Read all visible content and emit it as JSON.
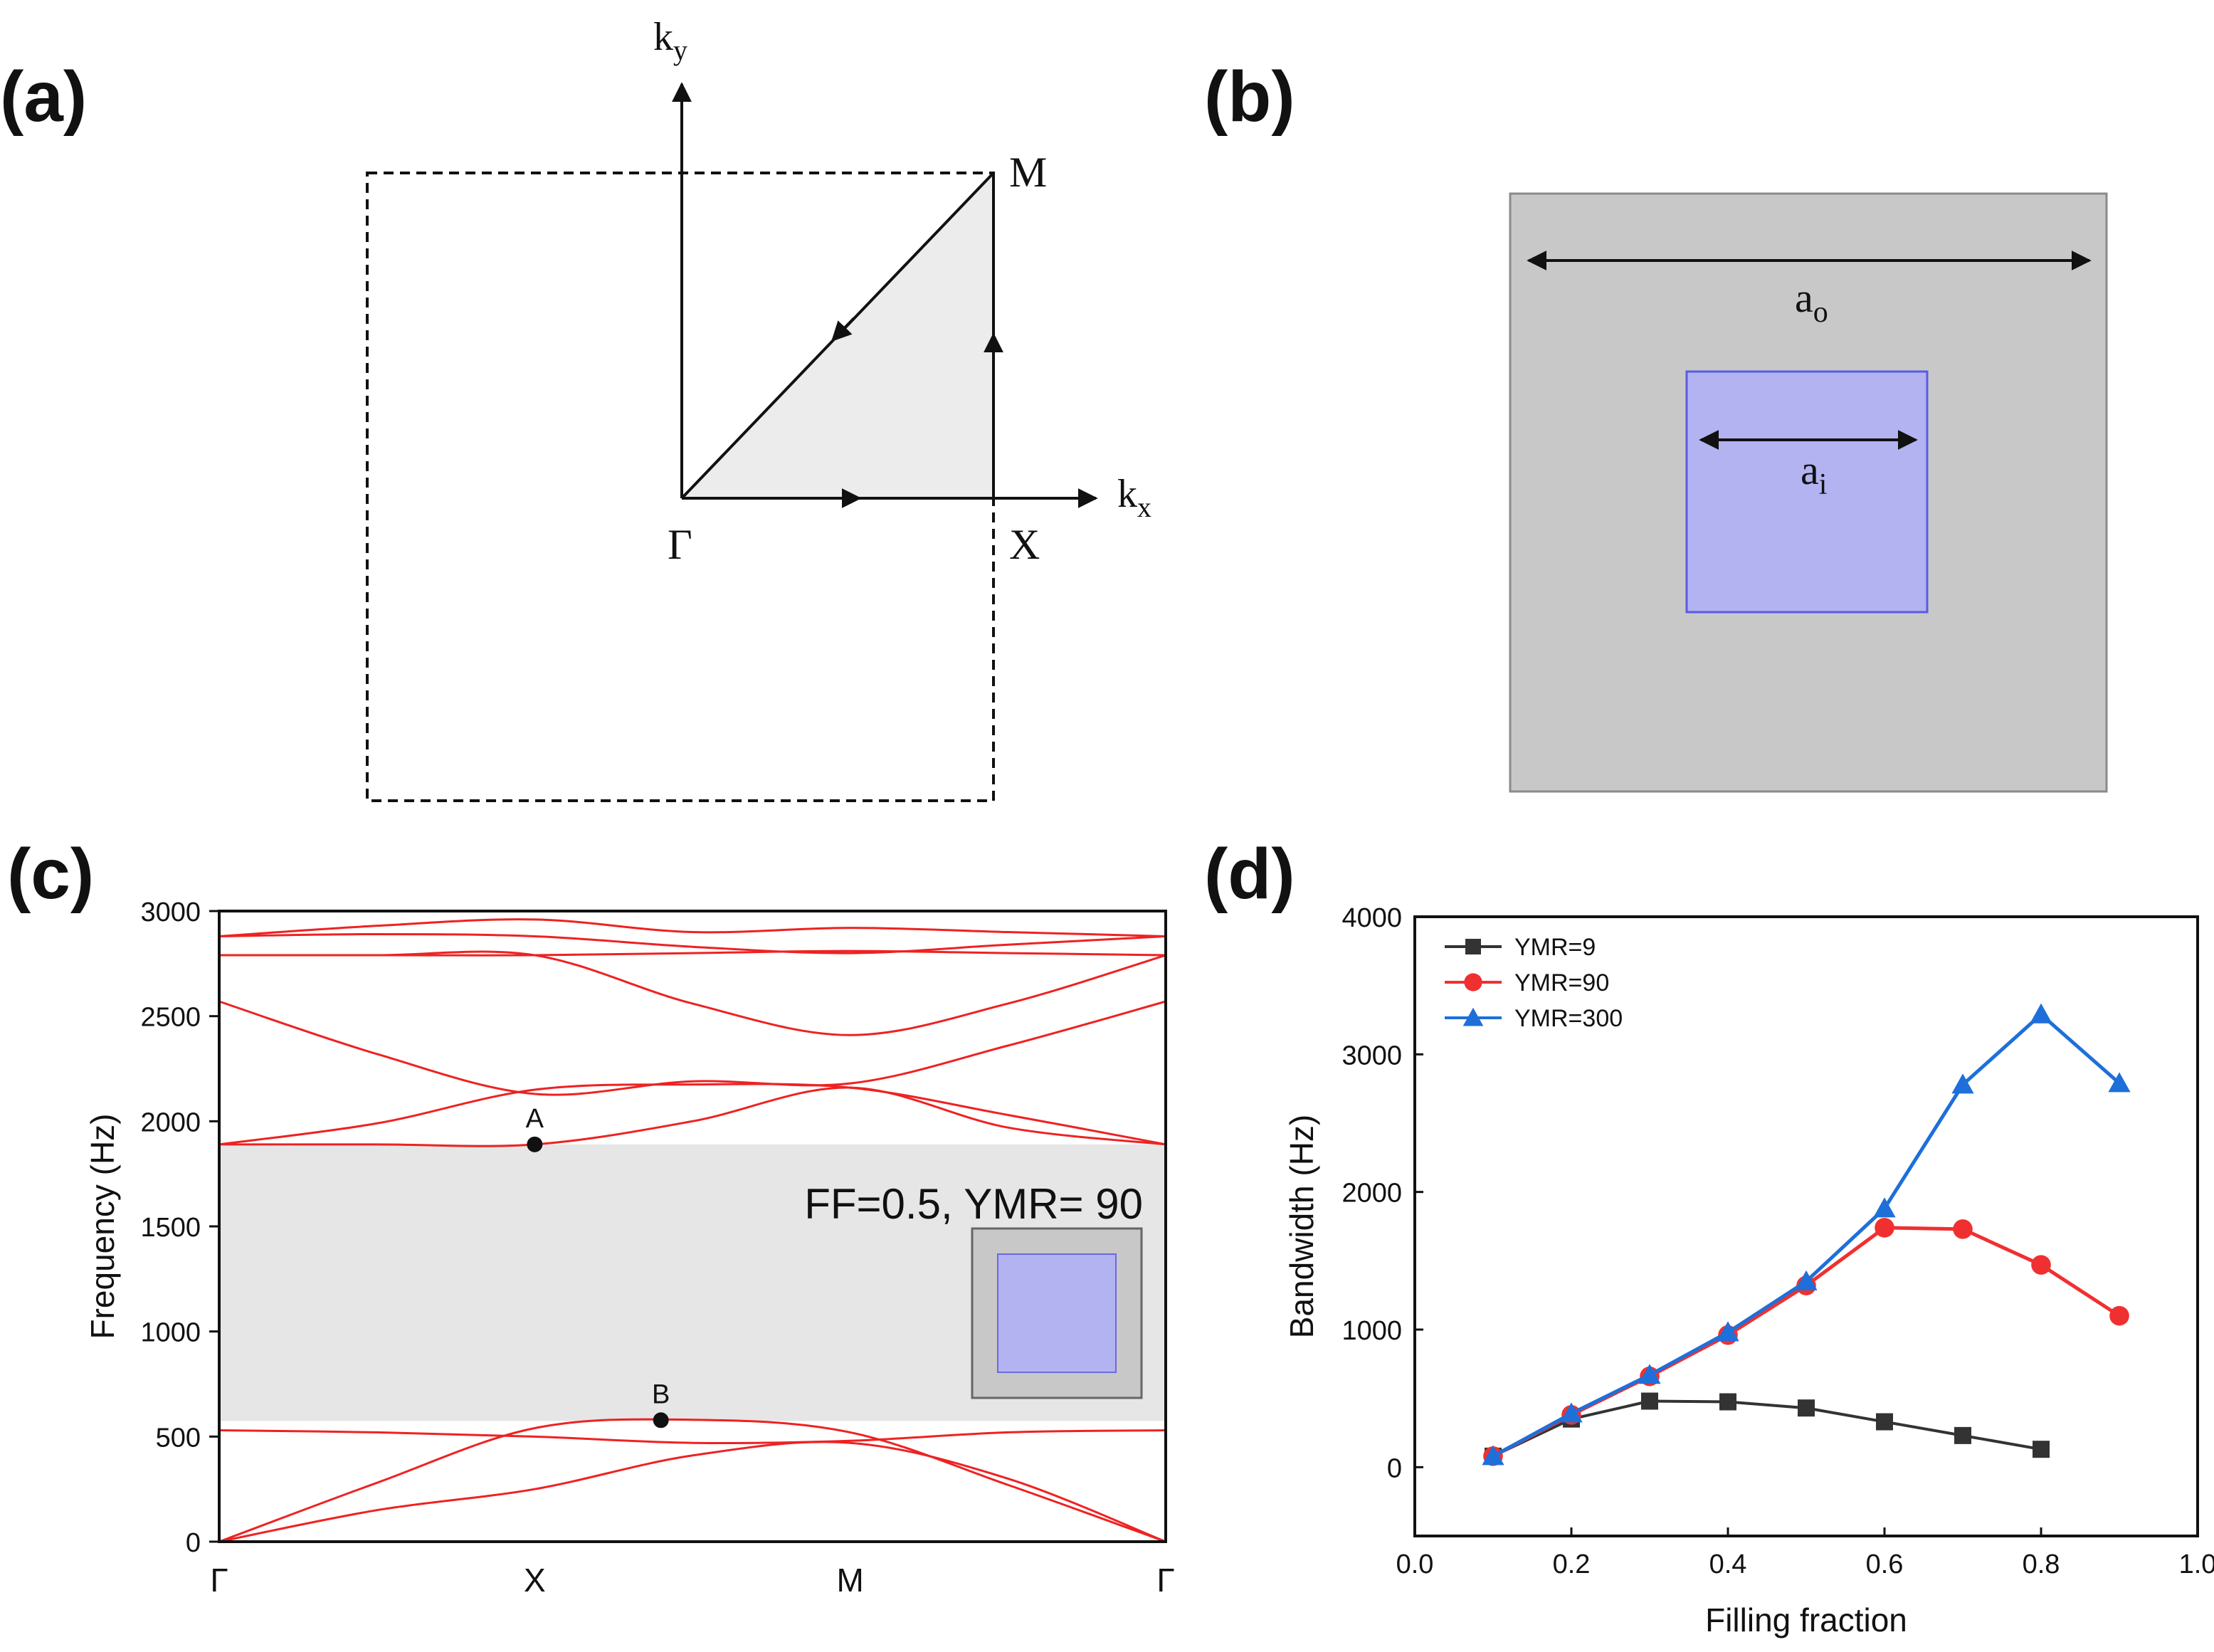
{
  "panels": {
    "a": {
      "label": "(a)",
      "ky": "k",
      "ky_sub": "y",
      "kx": "k",
      "kx_sub": "x",
      "M": "M",
      "X": "X",
      "Gamma": "Γ"
    },
    "b": {
      "label": "(b)",
      "ao": "a",
      "ao_sub": "o",
      "ai": "a",
      "ai_sub": "i",
      "outer_color": "#c8c8c8",
      "inner_color": "#b3b3f2"
    },
    "c": {
      "label": "(c)"
    },
    "d": {
      "label": "(d)"
    }
  },
  "chart_data": [
    {
      "type": "line",
      "panel": "c",
      "ylabel": "Frequency (Hz)",
      "xlabel": "",
      "x_tick_labels": [
        "Γ",
        "X",
        "M",
        "Γ"
      ],
      "y_ticks": [
        0,
        500,
        1000,
        1500,
        2000,
        2500,
        3000
      ],
      "ylim": [
        0,
        3000
      ],
      "x_path_positions": [
        0,
        1,
        2,
        3
      ],
      "bandgap": {
        "from": 574,
        "to": 1890,
        "color": "#e6e6e6"
      },
      "annotation": "FF=0.5, YMR= 90",
      "inset_colors": {
        "outer": "#c8c8c8",
        "inner": "#b3b3f2"
      },
      "points": [
        {
          "label": "A",
          "x": 1.0,
          "y": 1890
        },
        {
          "label": "B",
          "x": 1.4,
          "y": 578
        }
      ],
      "line_color": "#ee2222",
      "bands": [
        {
          "x": [
            0,
            0.5,
            1,
            1.5,
            2,
            2.5,
            3
          ],
          "y": [
            0,
            280,
            540,
            580,
            520,
            270,
            0
          ]
        },
        {
          "x": [
            0,
            0.5,
            1,
            1.5,
            2,
            2.5,
            3
          ],
          "y": [
            0,
            150,
            250,
            410,
            470,
            300,
            0
          ]
        },
        {
          "x": [
            0,
            0.5,
            1,
            1.5,
            2,
            2.5,
            3
          ],
          "y": [
            530,
            520,
            500,
            470,
            480,
            520,
            530
          ]
        },
        {
          "x": [
            0,
            0.5,
            1,
            1.5,
            2,
            2.5,
            3
          ],
          "y": [
            1890,
            1890,
            1890,
            2000,
            2160,
            1970,
            1890
          ]
        },
        {
          "x": [
            0,
            0.5,
            1,
            1.5,
            2,
            2.5,
            3
          ],
          "y": [
            1890,
            1990,
            2150,
            2175,
            2160,
            2030,
            1890
          ]
        },
        {
          "x": [
            0,
            0.5,
            1,
            1.5,
            2,
            2.5,
            3
          ],
          "y": [
            2570,
            2320,
            2130,
            2190,
            2180,
            2360,
            2570
          ]
        },
        {
          "x": [
            0,
            0.5,
            1,
            1.5,
            2,
            2.5,
            3
          ],
          "y": [
            2790,
            2790,
            2790,
            2560,
            2410,
            2560,
            2790
          ]
        },
        {
          "x": [
            0,
            0.5,
            1,
            1.5,
            2,
            2.5,
            3
          ],
          "y": [
            2790,
            2790,
            2790,
            2800,
            2810,
            2800,
            2790
          ]
        },
        {
          "x": [
            0,
            0.5,
            1,
            1.5,
            2,
            2.5,
            3
          ],
          "y": [
            2880,
            2890,
            2880,
            2830,
            2800,
            2840,
            2880
          ]
        },
        {
          "x": [
            0,
            0.5,
            1,
            1.5,
            2,
            2.5,
            3
          ],
          "y": [
            2880,
            2930,
            2960,
            2900,
            2920,
            2900,
            2880
          ]
        }
      ]
    },
    {
      "type": "line",
      "panel": "d",
      "xlabel": "Filling fraction",
      "ylabel": "Bandwidth (Hz)",
      "xlim": [
        0.0,
        1.0
      ],
      "ylim": [
        -500,
        4000
      ],
      "x_ticks": [
        "0.0",
        "0.2",
        "0.4",
        "0.6",
        "0.8",
        "1.0"
      ],
      "y_ticks": [
        "0",
        "1000",
        "2000",
        "3000",
        "4000"
      ],
      "legend_position": "top-left",
      "series": [
        {
          "name": "YMR=9",
          "color": "#333333",
          "marker": "square",
          "x": [
            0.1,
            0.2,
            0.3,
            0.4,
            0.5,
            0.6,
            0.7,
            0.8
          ],
          "y": [
            80,
            350,
            480,
            475,
            430,
            330,
            230,
            130
          ]
        },
        {
          "name": "YMR=90",
          "color": "#f03030",
          "marker": "circle",
          "x": [
            0.1,
            0.2,
            0.3,
            0.4,
            0.5,
            0.6,
            0.7,
            0.8,
            0.9
          ],
          "y": [
            80,
            380,
            660,
            960,
            1320,
            1740,
            1730,
            1470,
            1100
          ]
        },
        {
          "name": "YMR=300",
          "color": "#1e6fd9",
          "marker": "triangle",
          "x": [
            0.1,
            0.2,
            0.3,
            0.4,
            0.5,
            0.6,
            0.7,
            0.8,
            0.9
          ],
          "y": [
            80,
            390,
            670,
            980,
            1350,
            1880,
            2780,
            3290,
            2790
          ]
        }
      ]
    }
  ]
}
